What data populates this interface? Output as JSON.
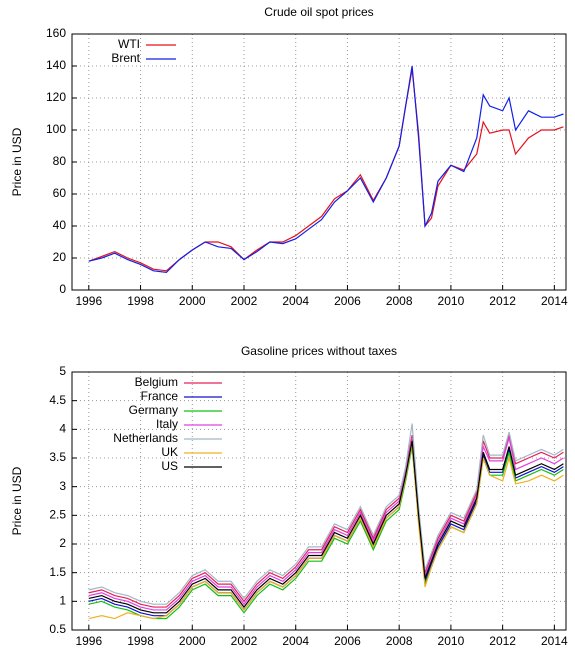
{
  "chart_data": [
    {
      "type": "line",
      "title": "Crude oil spot prices",
      "ylabel": "Price in USD",
      "x": [
        1996,
        1996.5,
        1997,
        1997.5,
        1998,
        1998.5,
        1999,
        1999.5,
        2000,
        2000.5,
        2001,
        2001.5,
        2002,
        2002.5,
        2003,
        2003.5,
        2004,
        2004.5,
        2005,
        2005.5,
        2006,
        2006.5,
        2007,
        2007.5,
        2008,
        2008.25,
        2008.5,
        2008.75,
        2009,
        2009.25,
        2009.5,
        2010,
        2010.5,
        2011,
        2011.25,
        2011.5,
        2012,
        2012.25,
        2012.5,
        2013,
        2013.5,
        2014,
        2014.35
      ],
      "series": [
        {
          "name": "WTI",
          "color": "#e8101a",
          "values": [
            18,
            21,
            24,
            20,
            17,
            13,
            12,
            19,
            25,
            30,
            30,
            27,
            19,
            25,
            30,
            30,
            34,
            40,
            46,
            57,
            62,
            72,
            56,
            70,
            90,
            115,
            138,
            98,
            40,
            45,
            65,
            78,
            75,
            85,
            105,
            98,
            100,
            100,
            85,
            95,
            100,
            100,
            102
          ]
        },
        {
          "name": "Brent",
          "color": "#1020e8",
          "values": [
            18,
            20,
            23,
            19,
            16,
            12,
            11,
            19,
            25,
            30,
            27,
            26,
            19,
            24,
            30,
            29,
            32,
            38,
            44,
            55,
            62,
            70,
            55,
            70,
            90,
            115,
            140,
            95,
            40,
            48,
            68,
            78,
            74,
            95,
            122,
            115,
            112,
            120,
            100,
            112,
            108,
            108,
            110
          ]
        }
      ],
      "xlim": [
        1995.35,
        2014.45
      ],
      "xticks": [
        1996,
        1998,
        2000,
        2002,
        2004,
        2006,
        2008,
        2010,
        2012,
        2014
      ],
      "ylim": [
        0,
        160
      ],
      "yticks": [
        0,
        20,
        40,
        60,
        80,
        100,
        120,
        140,
        160
      ],
      "grid": true,
      "legend": "top-left"
    },
    {
      "type": "line",
      "title": "Gasoline prices without taxes",
      "ylabel": "Price in USD",
      "x": [
        1996,
        1996.5,
        1997,
        1997.5,
        1998,
        1998.5,
        1999,
        1999.5,
        2000,
        2000.5,
        2001,
        2001.5,
        2002,
        2002.5,
        2003,
        2003.5,
        2004,
        2004.5,
        2005,
        2005.5,
        2006,
        2006.5,
        2007,
        2007.5,
        2008,
        2008.25,
        2008.5,
        2008.75,
        2009,
        2009.25,
        2009.5,
        2010,
        2010.5,
        2011,
        2011.25,
        2011.5,
        2012,
        2012.25,
        2012.5,
        2013,
        2013.5,
        2014,
        2014.35
      ],
      "series": [
        {
          "name": "Belgium",
          "color": "#e8205a",
          "values": [
            1.15,
            1.2,
            1.1,
            1.05,
            0.95,
            0.9,
            0.9,
            1.1,
            1.4,
            1.5,
            1.3,
            1.3,
            1.0,
            1.3,
            1.5,
            1.4,
            1.6,
            1.9,
            1.9,
            2.3,
            2.2,
            2.6,
            2.1,
            2.6,
            2.8,
            3.3,
            3.9,
            2.6,
            1.5,
            1.8,
            2.1,
            2.5,
            2.4,
            2.9,
            3.8,
            3.5,
            3.5,
            3.9,
            3.4,
            3.5,
            3.6,
            3.5,
            3.6
          ]
        },
        {
          "name": "France",
          "color": "#1010d0",
          "values": [
            1.0,
            1.05,
            0.95,
            0.9,
            0.8,
            0.75,
            0.75,
            0.95,
            1.25,
            1.35,
            1.15,
            1.15,
            0.85,
            1.15,
            1.35,
            1.25,
            1.45,
            1.75,
            1.75,
            2.15,
            2.05,
            2.45,
            1.95,
            2.45,
            2.65,
            3.15,
            3.75,
            2.45,
            1.35,
            1.65,
            1.95,
            2.35,
            2.25,
            2.75,
            3.55,
            3.25,
            3.25,
            3.65,
            3.15,
            3.25,
            3.35,
            3.25,
            3.35
          ]
        },
        {
          "name": "Germany",
          "color": "#10c010",
          "values": [
            0.95,
            1.0,
            0.9,
            0.85,
            0.75,
            0.7,
            0.7,
            0.9,
            1.2,
            1.3,
            1.1,
            1.1,
            0.8,
            1.1,
            1.3,
            1.2,
            1.4,
            1.7,
            1.7,
            2.1,
            2.0,
            2.4,
            1.9,
            2.4,
            2.6,
            3.1,
            3.7,
            2.4,
            1.3,
            1.6,
            1.9,
            2.3,
            2.2,
            2.7,
            3.5,
            3.2,
            3.2,
            3.6,
            3.1,
            3.2,
            3.3,
            3.2,
            3.3
          ]
        },
        {
          "name": "Italy",
          "color": "#e040e0",
          "values": [
            1.1,
            1.15,
            1.05,
            1.0,
            0.9,
            0.85,
            0.85,
            1.05,
            1.35,
            1.45,
            1.25,
            1.25,
            0.95,
            1.25,
            1.45,
            1.35,
            1.55,
            1.85,
            1.85,
            2.25,
            2.15,
            2.55,
            2.05,
            2.55,
            2.75,
            3.25,
            3.85,
            2.55,
            1.45,
            1.75,
            2.05,
            2.45,
            2.35,
            2.85,
            3.7,
            3.45,
            3.45,
            3.85,
            3.3,
            3.4,
            3.5,
            3.4,
            3.5
          ]
        },
        {
          "name": "Netherlands",
          "color": "#a0b8c8",
          "values": [
            1.2,
            1.25,
            1.15,
            1.1,
            1.0,
            0.95,
            0.95,
            1.15,
            1.45,
            1.55,
            1.35,
            1.35,
            1.05,
            1.35,
            1.55,
            1.45,
            1.65,
            1.95,
            1.95,
            2.35,
            2.25,
            2.65,
            2.15,
            2.65,
            2.85,
            3.35,
            4.1,
            2.65,
            1.55,
            1.85,
            2.15,
            2.55,
            2.45,
            2.95,
            3.9,
            3.55,
            3.55,
            3.95,
            3.45,
            3.55,
            3.65,
            3.55,
            3.65
          ]
        },
        {
          "name": "UK",
          "color": "#f0b020",
          "values": [
            0.7,
            0.75,
            0.7,
            0.8,
            0.75,
            0.7,
            0.75,
            0.95,
            1.25,
            1.35,
            1.15,
            1.15,
            0.85,
            1.15,
            1.35,
            1.25,
            1.45,
            1.75,
            1.75,
            2.15,
            2.05,
            2.45,
            1.95,
            2.45,
            2.65,
            3.15,
            3.75,
            2.35,
            1.25,
            1.6,
            1.9,
            2.3,
            2.2,
            2.7,
            3.5,
            3.2,
            3.1,
            3.5,
            3.05,
            3.1,
            3.2,
            3.1,
            3.2
          ]
        },
        {
          "name": "US",
          "color": "#000000",
          "values": [
            1.05,
            1.1,
            1.0,
            0.95,
            0.85,
            0.8,
            0.8,
            1.0,
            1.3,
            1.4,
            1.2,
            1.2,
            0.9,
            1.2,
            1.4,
            1.3,
            1.5,
            1.8,
            1.8,
            2.2,
            2.1,
            2.5,
            2.0,
            2.5,
            2.7,
            3.2,
            3.8,
            2.5,
            1.4,
            1.7,
            2.0,
            2.4,
            2.3,
            2.8,
            3.6,
            3.3,
            3.3,
            3.7,
            3.2,
            3.3,
            3.4,
            3.3,
            3.4
          ]
        }
      ],
      "xlim": [
        1995.35,
        2014.45
      ],
      "xticks": [
        1996,
        1998,
        2000,
        2002,
        2004,
        2006,
        2008,
        2010,
        2012,
        2014
      ],
      "ylim": [
        0.5,
        5
      ],
      "yticks": [
        0.5,
        1,
        1.5,
        2,
        2.5,
        3,
        3.5,
        4,
        4.5,
        5
      ],
      "grid": true,
      "legend": "top-left"
    }
  ]
}
